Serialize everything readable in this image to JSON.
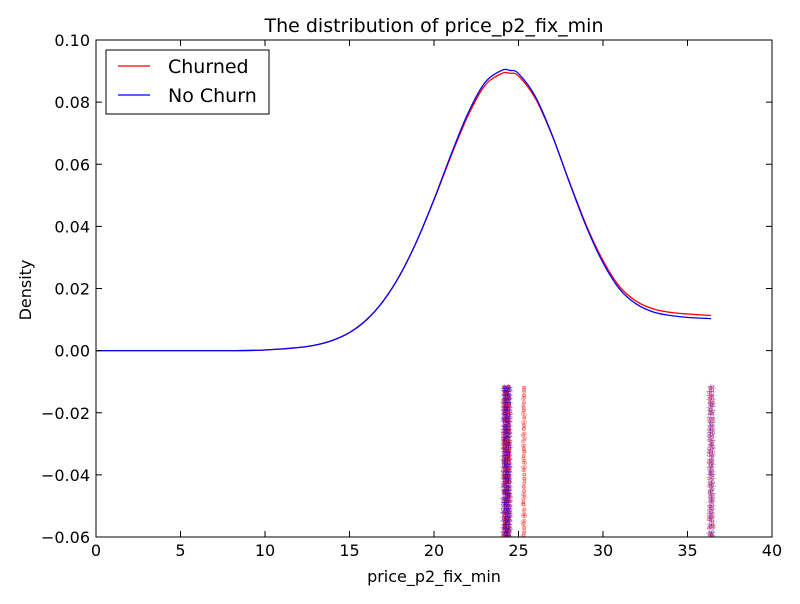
{
  "chart_data": {
    "type": "line",
    "title": "The distribution of price_p2_fix_min",
    "xlabel": "price_p2_fix_min",
    "ylabel": "Density",
    "xlim": [
      0,
      40
    ],
    "ylim": [
      -0.06,
      0.1
    ],
    "xticks": [
      0,
      5,
      10,
      15,
      20,
      25,
      30,
      35,
      40
    ],
    "xtick_labels": [
      "0",
      "5",
      "10",
      "15",
      "20",
      "25",
      "30",
      "35",
      "40"
    ],
    "yticks": [
      -0.06,
      -0.04,
      -0.02,
      0.0,
      0.02,
      0.04,
      0.06,
      0.08,
      0.1
    ],
    "ytick_labels": [
      "−0.06",
      "−0.04",
      "−0.02",
      "0.00",
      "0.02",
      "0.04",
      "0.06",
      "0.08",
      "0.10"
    ],
    "grid": false,
    "legend_position": "top-left",
    "series": [
      {
        "name": "Churned",
        "color": "#ff0000",
        "x": [
          0,
          5,
          8,
          10,
          12,
          13,
          14,
          15,
          16,
          17,
          18,
          19,
          20,
          21,
          22,
          23,
          24,
          24.5,
          25,
          26,
          27,
          28,
          29,
          30,
          31,
          32,
          33,
          34,
          35,
          36.4
        ],
        "y": [
          0.0,
          0.0,
          0.0,
          0.0002,
          0.001,
          0.0018,
          0.0033,
          0.0058,
          0.0099,
          0.016,
          0.0245,
          0.0355,
          0.0485,
          0.0625,
          0.0755,
          0.0853,
          0.0892,
          0.0893,
          0.0884,
          0.0812,
          0.0691,
          0.0545,
          0.0405,
          0.029,
          0.0205,
          0.0158,
          0.0134,
          0.0123,
          0.0118,
          0.0113
        ]
      },
      {
        "name": "No Churn",
        "color": "#0000ff",
        "x": [
          0,
          5,
          8,
          10,
          12,
          13,
          14,
          15,
          16,
          17,
          18,
          19,
          20,
          21,
          22,
          23,
          24,
          24.5,
          25,
          26,
          27,
          28,
          29,
          30,
          31,
          32,
          33,
          34,
          35,
          36.4
        ],
        "y": [
          0.0,
          0.0,
          0.0,
          0.0002,
          0.001,
          0.0018,
          0.0033,
          0.0058,
          0.0099,
          0.016,
          0.0245,
          0.0355,
          0.0487,
          0.063,
          0.0763,
          0.0862,
          0.0902,
          0.0902,
          0.0892,
          0.0818,
          0.0693,
          0.0543,
          0.0401,
          0.0283,
          0.0197,
          0.0149,
          0.0124,
          0.0113,
          0.0107,
          0.0103
        ]
      }
    ],
    "rug": [
      {
        "name": "Churned",
        "color": "#ff0000",
        "x": [
          24.1,
          24.15,
          24.2,
          24.25,
          24.3,
          24.35,
          24.4,
          24.45,
          24.5,
          24.3,
          24.2,
          24.4,
          25.3,
          25.35,
          36.3,
          36.4,
          36.5
        ],
        "y_range": [
          -0.06,
          -0.011
        ],
        "count": 40
      },
      {
        "name": "No Churn",
        "color": "#0000ff",
        "x": [
          24.1,
          24.15,
          24.2,
          24.25,
          24.3,
          24.35,
          24.4,
          24.45,
          24.5,
          36.3,
          36.4,
          36.5
        ],
        "y_range": [
          -0.06,
          -0.011
        ],
        "count": 40
      }
    ]
  }
}
